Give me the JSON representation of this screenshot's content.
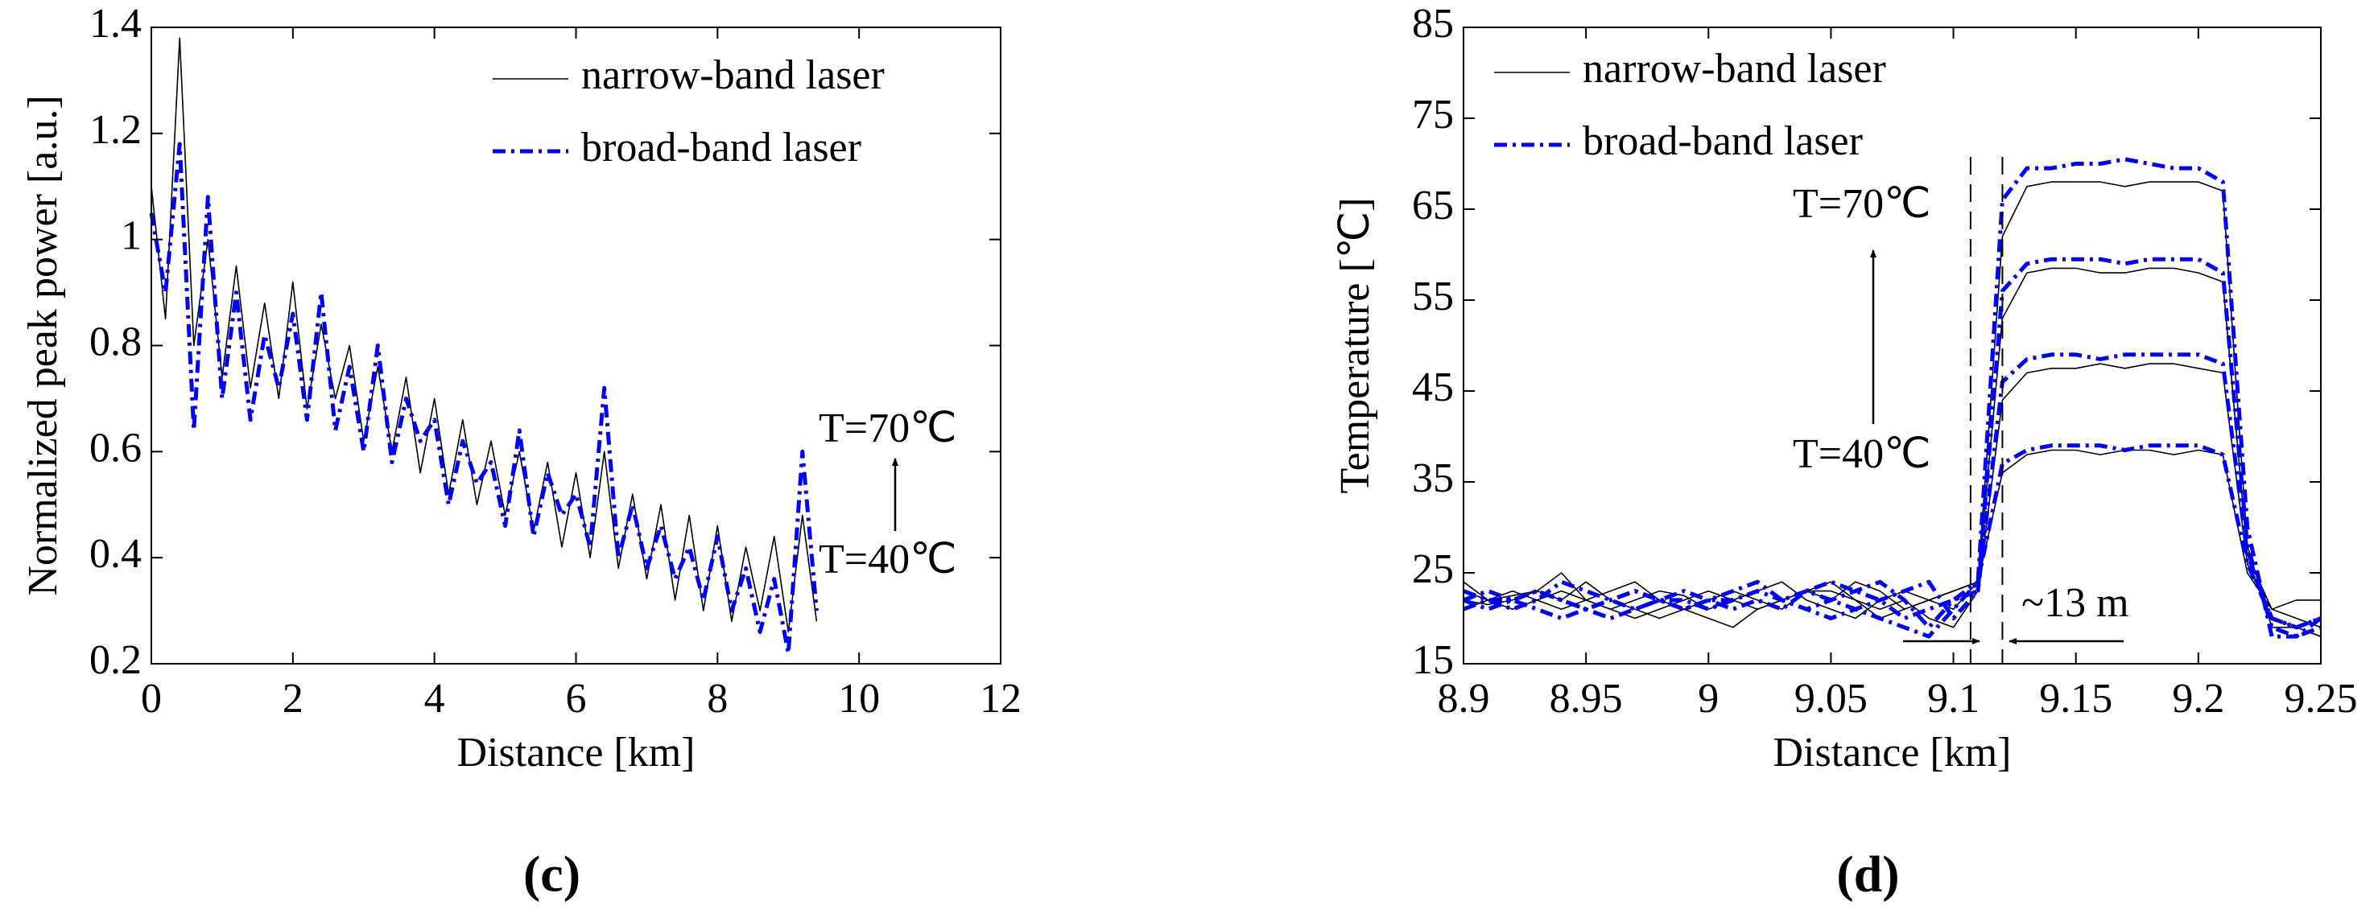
{
  "chart_data": [
    {
      "type": "line",
      "panel_label": "(c)",
      "xlabel": "Distance [km]",
      "ylabel": "Normalized peak power [a.u.]",
      "xlim": [
        0,
        12
      ],
      "xticks": [
        0,
        2,
        4,
        6,
        8,
        10,
        12
      ],
      "ylim": [
        0.2,
        1.4
      ],
      "yticks": [
        0.2,
        0.4,
        0.6,
        0.8,
        1,
        1.2,
        1.4
      ],
      "legend": "upper right",
      "x": [
        0,
        0.2,
        0.4,
        0.6,
        0.8,
        1,
        1.2,
        1.4,
        1.6,
        1.8,
        2,
        2.2,
        2.4,
        2.6,
        2.8,
        3,
        3.2,
        3.4,
        3.6,
        3.8,
        4,
        4.2,
        4.4,
        4.6,
        4.8,
        5,
        5.2,
        5.4,
        5.6,
        5.8,
        6,
        6.2,
        6.4,
        6.6,
        6.8,
        7,
        7.2,
        7.4,
        7.6,
        7.8,
        8,
        8.2,
        8.4,
        8.6,
        8.8,
        9,
        9.2,
        9.4
      ],
      "series": [
        {
          "name": "narrow-band laser",
          "color": "#000000",
          "style": "solid",
          "values": [
            1.1,
            0.85,
            1.38,
            0.8,
            1.0,
            0.74,
            0.95,
            0.72,
            0.88,
            0.7,
            0.92,
            0.68,
            0.84,
            0.7,
            0.8,
            0.62,
            0.76,
            0.6,
            0.74,
            0.56,
            0.7,
            0.52,
            0.66,
            0.5,
            0.62,
            0.48,
            0.6,
            0.45,
            0.58,
            0.42,
            0.56,
            0.4,
            0.6,
            0.38,
            0.52,
            0.36,
            0.5,
            0.32,
            0.48,
            0.3,
            0.46,
            0.28,
            0.42,
            0.3,
            0.44,
            0.26,
            0.48,
            0.28
          ]
        },
        {
          "name": "broad-band laser",
          "color": "#0000ff",
          "style": "dashdot",
          "values": [
            1.05,
            0.9,
            1.18,
            0.64,
            1.08,
            0.7,
            0.9,
            0.66,
            0.82,
            0.72,
            0.86,
            0.66,
            0.9,
            0.64,
            0.76,
            0.6,
            0.8,
            0.58,
            0.7,
            0.62,
            0.66,
            0.5,
            0.62,
            0.54,
            0.58,
            0.46,
            0.64,
            0.44,
            0.56,
            0.48,
            0.52,
            0.42,
            0.72,
            0.4,
            0.5,
            0.38,
            0.46,
            0.36,
            0.42,
            0.32,
            0.44,
            0.3,
            0.38,
            0.26,
            0.36,
            0.22,
            0.6,
            0.3
          ]
        }
      ],
      "annotations": [
        "T=70℃",
        "T=40℃"
      ]
    },
    {
      "type": "line",
      "panel_label": "(d)",
      "xlabel": "Distance [km]",
      "ylabel": "Temperature [℃]",
      "xlim": [
        8.9,
        9.25
      ],
      "xticks": [
        8.9,
        8.95,
        9,
        9.05,
        9.1,
        9.15,
        9.2,
        9.25
      ],
      "ylim": [
        15,
        85
      ],
      "yticks": [
        15,
        25,
        35,
        45,
        55,
        65,
        75,
        85
      ],
      "legend": "upper left",
      "x": [
        8.9,
        8.91,
        8.92,
        8.93,
        8.94,
        8.95,
        8.96,
        8.97,
        8.98,
        8.99,
        9,
        9.01,
        9.02,
        9.03,
        9.04,
        9.05,
        9.06,
        9.07,
        9.08,
        9.09,
        9.1,
        9.11,
        9.12,
        9.13,
        9.14,
        9.15,
        9.16,
        9.17,
        9.18,
        9.19,
        9.2,
        9.21,
        9.22,
        9.23,
        9.24,
        9.25
      ],
      "vlines": [
        9.107,
        9.12
      ],
      "series": [
        {
          "name": "narrow-band laser",
          "color": "#000000",
          "style": "solid",
          "traces": [
            [
              23,
              22,
              22.5,
              23,
              25,
              22,
              21,
              22,
              23,
              22.5,
              21,
              22,
              23,
              24,
              22,
              21,
              20,
              22,
              23,
              22,
              21,
              24,
              36,
              38,
              38.5,
              38.5,
              38,
              38.5,
              38.5,
              38,
              38.5,
              38,
              25,
              21,
              22,
              22
            ],
            [
              22,
              21.5,
              22,
              23,
              22,
              24,
              22,
              21,
              20,
              21,
              22,
              23,
              22,
              21,
              23,
              24,
              22,
              21,
              22,
              20,
              19,
              23,
              44,
              47,
              47.5,
              47.5,
              48,
              47.5,
              48,
              48,
              47.5,
              47,
              26,
              20,
              19,
              18
            ],
            [
              21,
              22,
              23,
              22,
              21,
              22,
              23,
              24,
              22,
              21,
              20,
              19,
              21,
              22,
              23,
              22,
              24,
              23,
              21,
              22,
              23,
              24,
              53,
              58,
              58.5,
              58.5,
              58,
              58,
              58.5,
              58.5,
              58,
              57,
              27,
              21,
              20,
              19
            ],
            [
              24,
              22,
              21,
              22,
              23,
              22,
              21,
              20,
              21,
              22,
              23,
              22,
              21,
              22,
              23,
              23,
              22,
              20,
              21,
              22,
              23,
              24,
              62,
              67.5,
              68,
              68,
              68,
              67.5,
              68,
              68,
              68,
              67,
              28,
              19,
              19,
              18
            ]
          ]
        },
        {
          "name": "broad-band laser",
          "color": "#0000ff",
          "style": "dashdot",
          "traces": [
            [
              22,
              21,
              22,
              23,
              22,
              21,
              22,
              23,
              22,
              22,
              21,
              22,
              23,
              22,
              21,
              22,
              23,
              24,
              22,
              19,
              22,
              24,
              37,
              38.5,
              39,
              39,
              39,
              38.5,
              39,
              39,
              39,
              38,
              26,
              20,
              19,
              20
            ],
            [
              21,
              22,
              21,
              22,
              24,
              23,
              22,
              21,
              22,
              23,
              22,
              21,
              22,
              21,
              23,
              24,
              23,
              22,
              20,
              21,
              22,
              23,
              46,
              48.5,
              49,
              49,
              48.5,
              49,
              49,
              49,
              49,
              48,
              27,
              20,
              19,
              20
            ],
            [
              22,
              23,
              22,
              21,
              20,
              21,
              22,
              23,
              22,
              21,
              22,
              22,
              23,
              22,
              21,
              20,
              21,
              22,
              23,
              24,
              20,
              23,
              56,
              59,
              59.5,
              59.5,
              59.5,
              59,
              59.5,
              59.5,
              59.5,
              58,
              28,
              19,
              18,
              19
            ],
            [
              23,
              22,
              22,
              23,
              22,
              21,
              20,
              21,
              22,
              21,
              22,
              23,
              24,
              22,
              23,
              22,
              21,
              20,
              19,
              18,
              21,
              24,
              66,
              69.5,
              69.5,
              70,
              70,
              70.5,
              70,
              69.5,
              69.5,
              68,
              30,
              18,
              18,
              20
            ]
          ]
        }
      ],
      "annotations": [
        "T=70℃",
        "T=40℃",
        "~13 m"
      ]
    }
  ]
}
